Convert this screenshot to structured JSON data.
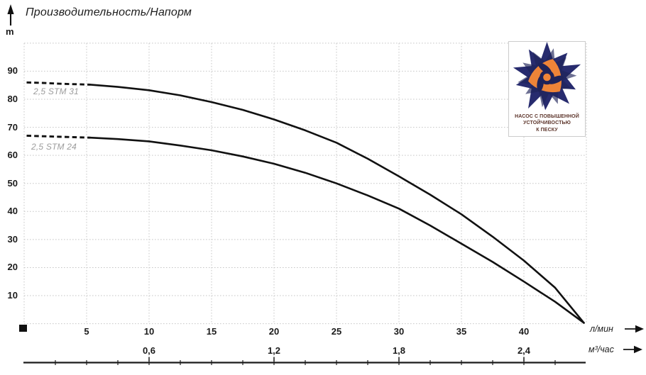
{
  "title": "Производительность/Напорм",
  "y_axis_unit": "m",
  "logo": {
    "line1": "НАСОС С ПОВЫШЕННОЙ",
    "line2": "УСТОЙЧИВОСТЬЮ",
    "line3": "К ПЕСКУ"
  },
  "colors": {
    "curve": "#111111",
    "grid": "#c7c7c7",
    "axis_text": "#1b1b1b",
    "series_label": "#9c9c9c",
    "logo_navy": "#272b6e",
    "logo_navy_dark": "#1f2359",
    "logo_orange": "#ee8438",
    "logo_text": "#5d352b"
  },
  "chart_data": {
    "type": "line",
    "title": "Производительность/Напорм",
    "grid": "dotted",
    "legend_position": "labels-near-curves-left",
    "y_axis": {
      "label": "m",
      "ticks": [
        10,
        20,
        30,
        40,
        50,
        60,
        70,
        80,
        90
      ],
      "range": [
        0,
        100
      ]
    },
    "x_axes": [
      {
        "label": "л/мин",
        "ticks": [
          5,
          10,
          15,
          20,
          25,
          30,
          35,
          40
        ],
        "tick_labels": [
          "5",
          "10",
          "15",
          "20",
          "25",
          "30",
          "35",
          "40"
        ],
        "range": [
          0,
          45
        ]
      },
      {
        "label": "м³/час",
        "ticks": [
          0.6,
          1.2,
          1.8,
          2.4
        ],
        "tick_labels": [
          "0,6",
          "1,2",
          "1,8",
          "2,4"
        ],
        "range": [
          0,
          2.7
        ]
      }
    ],
    "series": [
      {
        "name": "2,5 STM 31",
        "dashed_until_lmin": 5.3,
        "points_lmin_vs_m": [
          [
            0.2,
            86
          ],
          [
            1.5,
            85.8
          ],
          [
            3,
            85.5
          ],
          [
            5.3,
            85.2
          ],
          [
            7.5,
            84.4
          ],
          [
            10,
            83.2
          ],
          [
            12.5,
            81.4
          ],
          [
            15,
            79
          ],
          [
            17.5,
            76.2
          ],
          [
            20,
            72.8
          ],
          [
            22.5,
            68.9
          ],
          [
            25,
            64.5
          ],
          [
            27.5,
            58.8
          ],
          [
            30,
            52.5
          ],
          [
            32.5,
            46
          ],
          [
            35,
            39
          ],
          [
            37.5,
            31
          ],
          [
            40,
            22.5
          ],
          [
            42.5,
            12.8
          ],
          [
            44.8,
            0.3
          ]
        ]
      },
      {
        "name": "2,5 STM 24",
        "dashed_until_lmin": 5.3,
        "points_lmin_vs_m": [
          [
            0.2,
            67
          ],
          [
            1.5,
            66.8
          ],
          [
            3,
            66.6
          ],
          [
            5.3,
            66.3
          ],
          [
            7.5,
            65.8
          ],
          [
            10,
            65
          ],
          [
            12.5,
            63.5
          ],
          [
            15,
            61.8
          ],
          [
            17.5,
            59.6
          ],
          [
            20,
            57
          ],
          [
            22.5,
            53.8
          ],
          [
            25,
            50
          ],
          [
            27.5,
            45.7
          ],
          [
            30,
            41
          ],
          [
            32.5,
            35
          ],
          [
            35,
            28.5
          ],
          [
            37.5,
            22
          ],
          [
            40,
            15
          ],
          [
            42.5,
            7.8
          ],
          [
            44.8,
            0.3
          ]
        ]
      }
    ]
  }
}
